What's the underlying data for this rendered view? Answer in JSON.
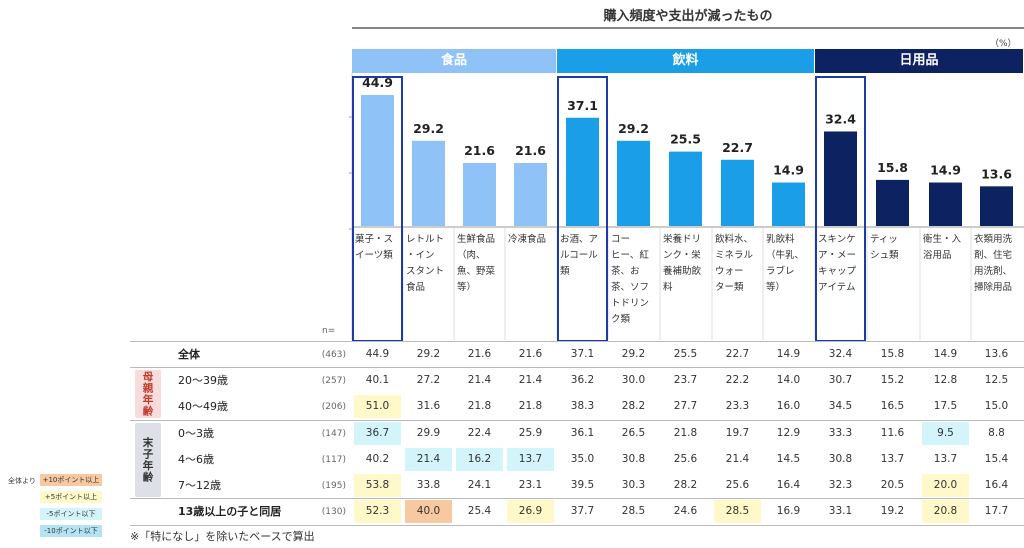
{
  "title": "購入頻度や支出が減ったもの",
  "unit": "（%）",
  "n_label": "n=",
  "groups": [
    {
      "label": "食品",
      "color": "#8fc3f7",
      "start": 0,
      "end": 3
    },
    {
      "label": "飲料",
      "color": "#1a9ee8",
      "start": 4,
      "end": 8
    },
    {
      "label": "日用品",
      "color": "#0d2260",
      "start": 9,
      "end": 12
    }
  ],
  "chart_data": {
    "type": "bar",
    "title": "購入頻度や支出が減ったもの",
    "ylabel": "%",
    "ylim": [
      0,
      50
    ],
    "categories": [
      "菓子・スイーツ類",
      "レトルト・インスタント食品",
      "生鮮食品（肉、魚、野菜等）",
      "冷凍食品",
      "お酒、アルコール類",
      "コーヒー、紅茶、お茶、ソフトドリンク類",
      "栄養ドリンク・栄養補助飲料",
      "飲料水、ミネラルウォーター類",
      "乳飲料（牛乳、ラブレ等）",
      "スキンケア・メーキャップアイテム",
      "ティッシュ類",
      "衛生・入浴用品",
      "衣類用洗剤、住宅用洗剤、掃除用品"
    ],
    "values": [
      44.9,
      29.2,
      21.6,
      21.6,
      37.1,
      29.2,
      25.5,
      22.7,
      14.9,
      32.4,
      15.8,
      14.9,
      13.6
    ],
    "value_labels": [
      "44.9",
      "29.2",
      "21.6",
      "21.6",
      "37.1",
      "29.2",
      "25.5",
      "22.7",
      "14.9",
      "32.4",
      "15.8",
      "14.9",
      "13.6"
    ],
    "bar_colors": [
      "#8fc3f7",
      "#8fc3f7",
      "#8fc3f7",
      "#8fc3f7",
      "#1a9ee8",
      "#1a9ee8",
      "#1a9ee8",
      "#1a9ee8",
      "#1a9ee8",
      "#0d2260",
      "#0d2260",
      "#0d2260",
      "#0d2260"
    ],
    "highlighted": [
      0,
      4,
      9
    ],
    "highlight_color": "#1c3aa8"
  },
  "category_lines": [
    [
      "菓子・ス",
      "イーツ類"
    ],
    [
      "レトルト",
      "・イン",
      "スタント",
      "食品"
    ],
    [
      "生鮮食品",
      "（肉、",
      "魚、野菜",
      "等）"
    ],
    [
      "冷凍食品"
    ],
    [
      "お酒、ア",
      "ルコール",
      "類"
    ],
    [
      "コー",
      "ヒー、紅",
      "茶、お",
      "茶、ソフ",
      "トドリン",
      "ク類"
    ],
    [
      "栄養ドリ",
      "ンク・栄",
      "養補助飲",
      "料"
    ],
    [
      "飲料水、",
      "ミネラル",
      "ウォー",
      "ター類"
    ],
    [
      "乳飲料",
      "（牛乳、",
      "ラブレ",
      "等）"
    ],
    [
      "スキンケ",
      "ア・メー",
      "キャップ",
      "アイテム"
    ],
    [
      "ティッ",
      "シュ類"
    ],
    [
      "衛生・入",
      "浴用品"
    ],
    [
      "衣類用洗",
      "剤、住宅",
      "用洗剤、",
      "掃除用品"
    ]
  ],
  "table": {
    "rows": [
      {
        "label": "全体",
        "n": "(463)",
        "values": [
          "44.9",
          "29.2",
          "21.6",
          "21.6",
          "37.1",
          "29.2",
          "25.5",
          "22.7",
          "14.9",
          "32.4",
          "15.8",
          "14.9",
          "13.6"
        ],
        "hl": [
          null,
          null,
          null,
          null,
          null,
          null,
          null,
          null,
          null,
          null,
          null,
          null,
          null
        ],
        "bold": true
      },
      {
        "label": "20～39歳",
        "n": "(257)",
        "values": [
          "40.1",
          "27.2",
          "21.4",
          "21.4",
          "36.2",
          "30.0",
          "23.7",
          "22.2",
          "14.0",
          "30.7",
          "15.2",
          "12.8",
          "12.5"
        ],
        "hl": [
          null,
          null,
          null,
          null,
          null,
          null,
          null,
          null,
          null,
          null,
          null,
          null,
          null
        ]
      },
      {
        "label": "40～49歳",
        "n": "(206)",
        "values": [
          "51.0",
          "31.6",
          "21.8",
          "21.8",
          "38.3",
          "28.2",
          "27.7",
          "23.3",
          "16.0",
          "34.5",
          "16.5",
          "17.5",
          "15.0"
        ],
        "hl": [
          "#fff8c8",
          null,
          null,
          null,
          null,
          null,
          null,
          null,
          null,
          null,
          null,
          null,
          null
        ]
      },
      {
        "label": "0～3歳",
        "n": "(147)",
        "values": [
          "36.7",
          "29.9",
          "22.4",
          "25.9",
          "36.1",
          "26.5",
          "21.8",
          "19.7",
          "12.9",
          "33.3",
          "11.6",
          "9.5",
          "8.8"
        ],
        "hl": [
          "#d4f4fb",
          null,
          null,
          null,
          null,
          null,
          null,
          null,
          null,
          null,
          null,
          "#d4f4fb",
          null
        ]
      },
      {
        "label": "4～6歳",
        "n": "(117)",
        "values": [
          "40.2",
          "21.4",
          "16.2",
          "13.7",
          "35.0",
          "30.8",
          "25.6",
          "21.4",
          "14.5",
          "30.8",
          "13.7",
          "13.7",
          "15.4"
        ],
        "hl": [
          null,
          "#d4f4fb",
          "#d4f4fb",
          "#d4f4fb",
          null,
          null,
          null,
          null,
          null,
          null,
          null,
          null,
          null
        ]
      },
      {
        "label": "7～12歳",
        "n": "(195)",
        "values": [
          "53.8",
          "33.8",
          "24.1",
          "23.1",
          "39.5",
          "30.3",
          "28.2",
          "25.6",
          "16.4",
          "32.3",
          "20.5",
          "20.0",
          "16.4"
        ],
        "hl": [
          "#fff8c8",
          null,
          null,
          null,
          null,
          null,
          null,
          null,
          null,
          null,
          null,
          "#fff8c8",
          null
        ]
      },
      {
        "label": "13歳以上の子と同居",
        "n": "(130)",
        "values": [
          "52.3",
          "40.0",
          "25.4",
          "26.9",
          "37.7",
          "28.5",
          "24.6",
          "28.5",
          "16.9",
          "33.1",
          "19.2",
          "20.8",
          "17.7"
        ],
        "hl": [
          "#fff8c8",
          "#f8c9a0",
          null,
          "#fff8c8",
          null,
          null,
          null,
          "#fff8c8",
          null,
          null,
          null,
          "#fff8c8",
          null
        ],
        "bold": true
      }
    ],
    "side_groups": [
      {
        "label": "母親年齢",
        "bg": "#f8dcdc",
        "color": "#c0392b"
      },
      {
        "label": "末子年齢",
        "bg": "#dde0e6",
        "color": "#333333"
      }
    ]
  },
  "legend": {
    "title": "全体より",
    "items": [
      {
        "label": "+10ポイント以上",
        "color": "#f8c9a0"
      },
      {
        "label": "+5ポイント以上",
        "color": "#fff8c8"
      },
      {
        "label": "-5ポイント以下",
        "color": "#d4f4fb"
      },
      {
        "label": "-10ポイント以下",
        "color": "#b4e4f4"
      }
    ]
  },
  "footnote": "※「特になし」を除いたベースで算出"
}
